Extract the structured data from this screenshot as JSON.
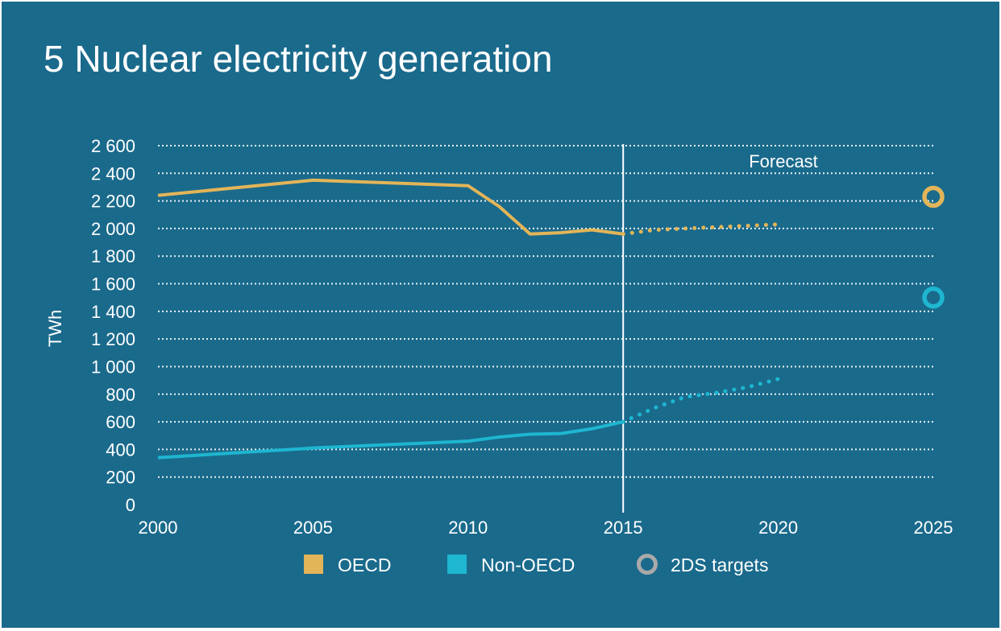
{
  "title": "5 Nuclear electricity generation",
  "chart_data": {
    "type": "line",
    "ylabel": "TWh",
    "xlabel": "",
    "xlim": [
      2000,
      2025
    ],
    "ylim": [
      0,
      2600
    ],
    "x_ticks": [
      "2000",
      "2005",
      "2010",
      "2015",
      "2020",
      "2025"
    ],
    "y_ticks": [
      "0",
      "200",
      "400",
      "600",
      "800",
      "1 000",
      "1 200",
      "1 400",
      "1 600",
      "1 800",
      "2 000",
      "2 200",
      "2 400",
      "2 600"
    ],
    "grid": "horizontal dotted",
    "forecast_start": 2015,
    "forecast_label": "Forecast",
    "series": [
      {
        "name": "OECD",
        "color": "#e2b558",
        "actual": {
          "x": [
            2000,
            2005,
            2010,
            2011,
            2012,
            2013,
            2014,
            2015
          ],
          "y": [
            2240,
            2350,
            2310,
            2160,
            1960,
            1970,
            1990,
            1960
          ]
        },
        "forecast": {
          "x": [
            2015,
            2016,
            2017,
            2018,
            2019,
            2020
          ],
          "y": [
            1960,
            1990,
            2000,
            2010,
            2020,
            2030
          ]
        }
      },
      {
        "name": "Non-OECD",
        "color": "#1eb6d0",
        "actual": {
          "x": [
            2000,
            2005,
            2010,
            2011,
            2012,
            2013,
            2014,
            2015
          ],
          "y": [
            340,
            410,
            460,
            490,
            510,
            515,
            550,
            600
          ]
        },
        "forecast": {
          "x": [
            2015,
            2016,
            2017,
            2018,
            2019,
            2020
          ],
          "y": [
            600,
            700,
            780,
            810,
            850,
            910
          ]
        }
      }
    ],
    "targets": {
      "name": "2DS targets",
      "legend_color": "#a9a9a9",
      "points": [
        {
          "series": "OECD",
          "x": 2025,
          "y": 2230,
          "color": "#e2b558"
        },
        {
          "series": "Non-OECD",
          "x": 2025,
          "y": 1500,
          "color": "#1eb6d0"
        }
      ]
    },
    "legend": {
      "placement": "bottom",
      "items": [
        {
          "label": "OECD",
          "shape": "square",
          "color": "#e2b558"
        },
        {
          "label": "Non-OECD",
          "shape": "square",
          "color": "#1eb6d0"
        },
        {
          "label": "2DS targets",
          "shape": "ring",
          "color": "#a9a9a9"
        }
      ]
    }
  }
}
